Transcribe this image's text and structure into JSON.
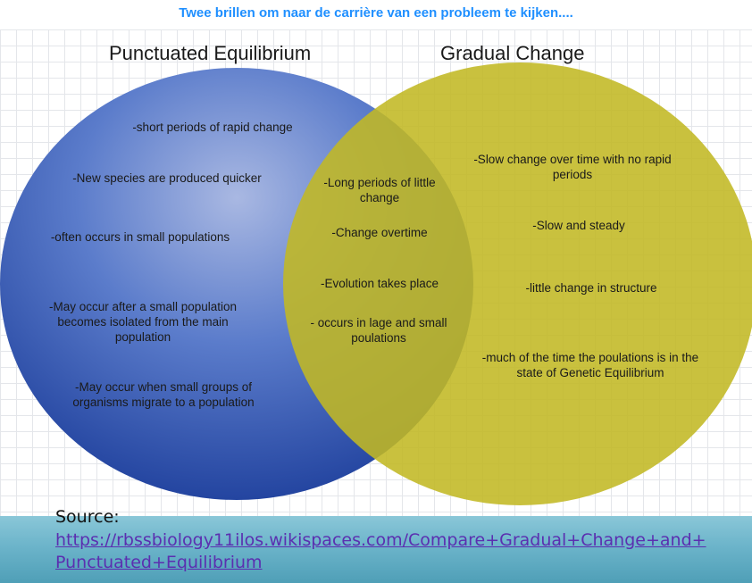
{
  "banner": {
    "title": "Twee brillen om naar de carrière van een probleem te kijken...."
  },
  "venn": {
    "left": {
      "title": "Punctuated Equilibrium",
      "color": "#2f55b4",
      "items": [
        "-short periods of rapid change",
        "-New species are produced quicker",
        "-often occurs in small populations",
        "-May occur after a small population becomes isolated from the main population",
        "-May occur when small groups of organisms migrate to a population"
      ]
    },
    "right": {
      "title": "Gradual Change",
      "color": "#c9c03a",
      "items": [
        "-Slow change over time with no rapid periods",
        "-Slow and steady",
        "-little change in structure",
        "-much of the time the poulations is in the state of Genetic Equilibrium"
      ]
    },
    "overlap": {
      "items": [
        "-Long periods of little change",
        "-Change overtime",
        "-Evolution takes place",
        "- occurs in lage and small poulations"
      ]
    }
  },
  "source": {
    "label": "Source:",
    "link": "https://rbssbiology11ilos.wikispaces.com/Compare+Gradual+Change+and+Punctuated+Equilibrium"
  }
}
